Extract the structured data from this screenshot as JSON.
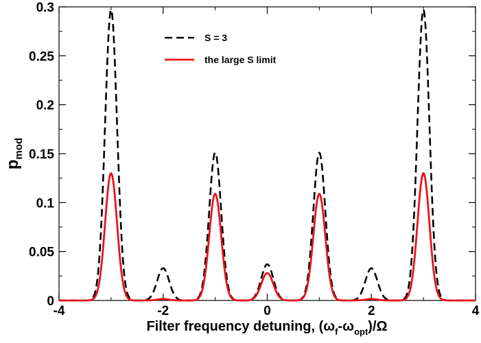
{
  "chart_data": {
    "type": "line",
    "xlabel": {
      "main": "Filter frequency detuning, (",
      "omega1": "ω",
      "sub1": "f",
      "dash": "-",
      "omega2": "ω",
      "sub2": "opt",
      "tail": ")/Ω"
    },
    "ylabel": {
      "main": "p",
      "sub": "mod"
    },
    "xlim": [
      -4,
      4
    ],
    "ylim": [
      0,
      0.3
    ],
    "xticks": [
      -4,
      -2,
      0,
      2,
      4
    ],
    "xtick_labels": [
      "-4",
      "-2",
      "0",
      "2",
      "4"
    ],
    "yticks": [
      0,
      0.05,
      0.1,
      0.15,
      0.2,
      0.25,
      0.3
    ],
    "ytick_labels": [
      "0",
      "0.05",
      "0.1",
      "0.15",
      "0.2",
      "0.25",
      "0.3"
    ],
    "legend_position": "top-center",
    "peak_width": 0.115,
    "series": [
      {
        "name": "S = 3",
        "color": "#000000",
        "style": "dashed",
        "peaks": [
          {
            "x": -3,
            "y": 0.297
          },
          {
            "x": -2,
            "y": 0.033
          },
          {
            "x": -1,
            "y": 0.151
          },
          {
            "x": 0,
            "y": 0.037
          },
          {
            "x": 1,
            "y": 0.151
          },
          {
            "x": 2,
            "y": 0.033
          },
          {
            "x": 3,
            "y": 0.297
          }
        ]
      },
      {
        "name": "the large S limit",
        "color": "#e8141c",
        "style": "solid",
        "peaks": [
          {
            "x": -3,
            "y": 0.13
          },
          {
            "x": -2,
            "y": 0.0015
          },
          {
            "x": -1,
            "y": 0.109
          },
          {
            "x": 0,
            "y": 0.028
          },
          {
            "x": 1,
            "y": 0.109
          },
          {
            "x": 2,
            "y": 0.0015
          },
          {
            "x": 3,
            "y": 0.13
          }
        ]
      }
    ]
  }
}
